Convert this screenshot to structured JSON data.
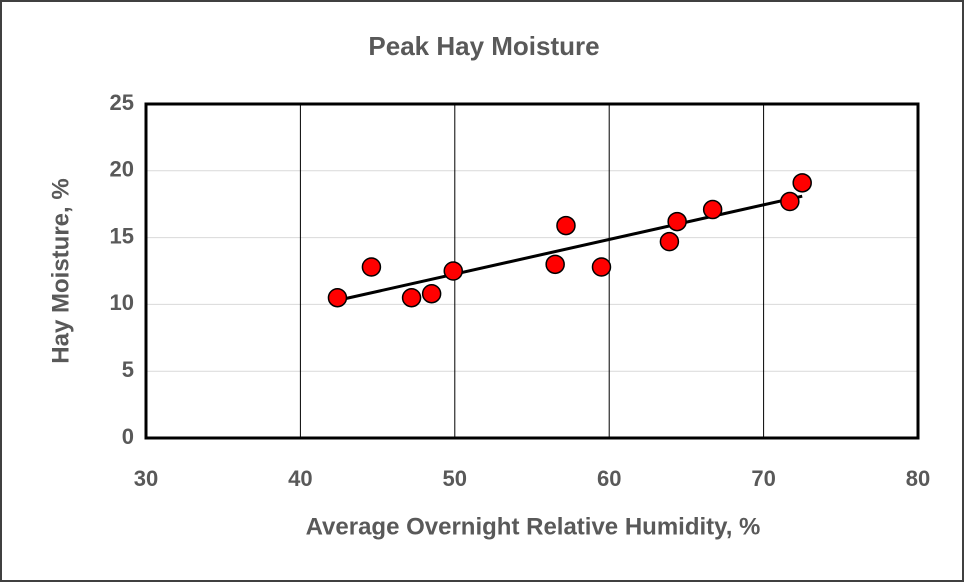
{
  "chart_data": {
    "type": "scatter",
    "title": "Peak Hay Moisture",
    "x_label": "Average Overnight Relative Humidity, %",
    "y_label": "Hay Moisture, %",
    "series": [
      {
        "name": "Hay moisture",
        "color": "#ff0000",
        "x": [
          42.4,
          44.6,
          47.2,
          48.5,
          49.9,
          56.5,
          57.2,
          59.5,
          63.9,
          64.4,
          66.7,
          71.7,
          72.5
        ],
        "values": [
          10.5,
          12.8,
          10.5,
          10.8,
          12.5,
          13.0,
          15.9,
          12.8,
          14.7,
          16.2,
          17.1,
          17.7,
          19.1
        ]
      }
    ],
    "trendline": {
      "color": "#000000",
      "x": [
        42.4,
        72.5
      ],
      "values": [
        10.3,
        18.1
      ]
    },
    "xlim": [
      30,
      80
    ],
    "xticks": [
      30,
      40,
      50,
      60,
      70,
      80
    ],
    "ylim": [
      0,
      25
    ],
    "yticks": [
      0,
      5,
      10,
      15,
      20,
      25
    ],
    "grid": {
      "x": "#000000",
      "y": "#d9d9d9"
    }
  }
}
